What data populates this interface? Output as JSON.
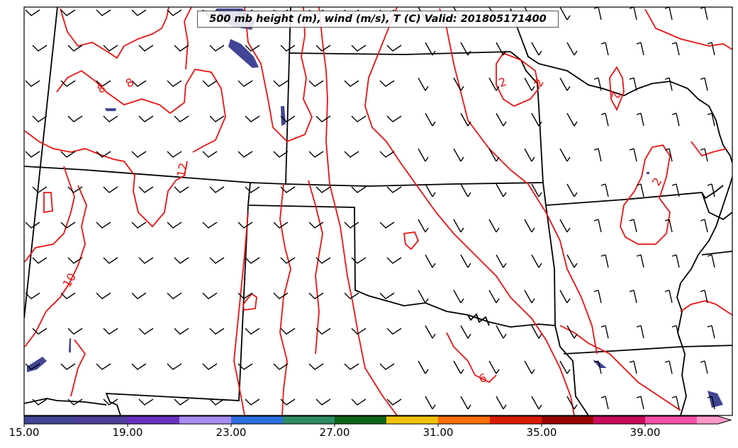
{
  "title": "500 mb height (m), wind (m/s), T (C) Valid: 201805171400",
  "temperature_contour_labels": [
    "8",
    "8",
    "12",
    "10",
    "2",
    "2",
    "2",
    "2",
    "6"
  ],
  "colorbar": {
    "tick_labels": [
      "15.00",
      "19.00",
      "23.00",
      "27.00",
      "31.00",
      "35.00",
      "39.00"
    ],
    "min": 15,
    "max": 43,
    "colors": [
      "#414595",
      "#4e3e9a",
      "#6a31bd",
      "#a58cf0",
      "#2f6fe0",
      "#2e8b63",
      "#0d6419",
      "#efc10a",
      "#fa6d04",
      "#d91c02",
      "#990000",
      "#c80c5a",
      "#f452a8",
      "#fb9ac8"
    ]
  }
}
